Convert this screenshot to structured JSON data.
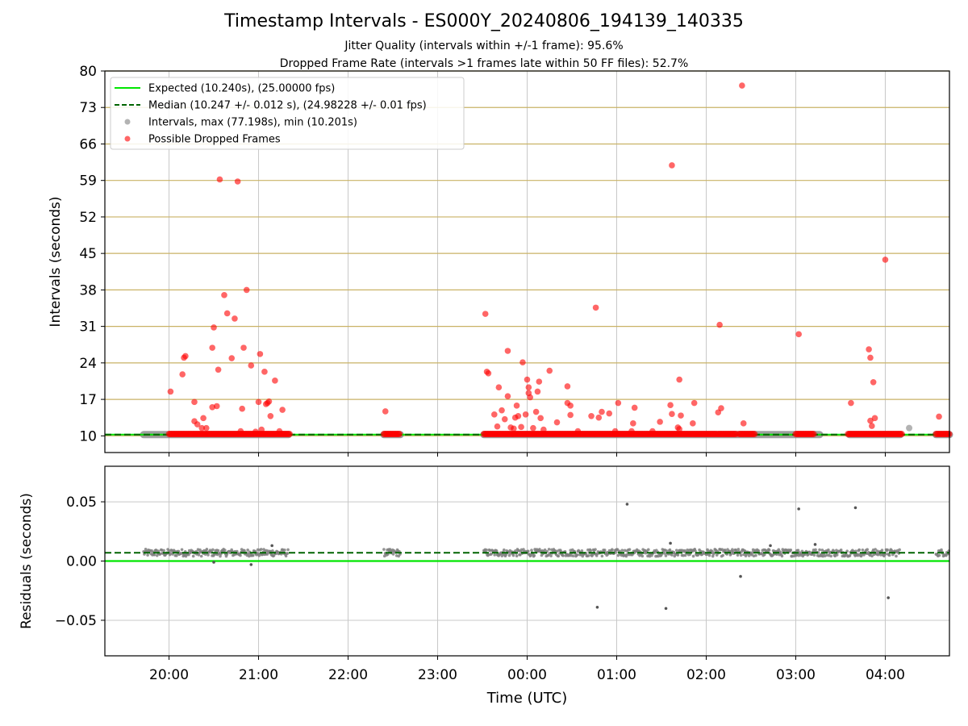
{
  "figure": {
    "title": "Timestamp Intervals - ES000Y_20240806_194139_140335",
    "subtitle_1": "Jitter Quality (intervals within +/-1 frame): 95.6%",
    "subtitle_2": "Dropped Frame Rate (intervals >1 frames late within 50 FF files): 52.7%"
  },
  "colors": {
    "expected": "#00e600",
    "median": "#006400",
    "intervals": "#808080",
    "dropped": "#ff0000",
    "hgrid_top": "#c9b266",
    "grid": "#c8c8c8"
  },
  "chart_data": [
    {
      "type": "scatter",
      "panel": "top",
      "title": "Timestamp Intervals - ES000Y_20240806_194139_140335",
      "xlabel": "",
      "ylabel": "Intervals (seconds)",
      "x_range": [
        "19:17",
        "04:43"
      ],
      "ylim": [
        6.8,
        80
      ],
      "yticks": [
        10,
        17,
        24,
        31,
        38,
        45,
        52,
        59,
        66,
        73,
        80
      ],
      "xticks": [
        "20:00",
        "21:00",
        "22:00",
        "23:00",
        "00:00",
        "01:00",
        "02:00",
        "03:00",
        "04:00"
      ],
      "grid": true,
      "legend_position": "top-left",
      "legend": [
        "Expected (10.240s), (25.00000 fps)",
        "Median (10.247 +/- 0.012 s), (24.98228 +/- 0.01 fps)",
        "Intervals, max (77.198s), min (10.201s)",
        "Possible Dropped Frames"
      ],
      "expected_value": 10.24,
      "median_value": 10.247,
      "interval_segments": [
        {
          "x": [
            "19:43",
            "21:20"
          ],
          "y": 10.24
        },
        {
          "x": [
            "22:24",
            "22:35"
          ],
          "y": 10.24
        },
        {
          "x": [
            "23:31",
            "03:16"
          ],
          "y": 10.24
        },
        {
          "x": [
            "03:36",
            "04:10"
          ],
          "y": 10.24
        },
        {
          "x": [
            "04:34",
            "04:43"
          ],
          "y": 10.24
        }
      ],
      "dropped_baseline_segments": [
        [
          "20:00",
          "21:21"
        ],
        [
          "22:24",
          "22:35"
        ],
        [
          "23:31",
          "02:07"
        ],
        [
          "02:08",
          "02:20"
        ],
        [
          "02:22",
          "02:33"
        ],
        [
          "03:00",
          "03:12"
        ],
        [
          "03:35",
          "04:11"
        ],
        [
          "04:34",
          "04:43"
        ]
      ],
      "interval_points_extra": [
        {
          "x": "04:16",
          "y": 11.5
        }
      ],
      "dropped_points": [
        {
          "x": "20:01",
          "y": 18.5
        },
        {
          "x": "20:09",
          "y": 21.8
        },
        {
          "x": "20:10",
          "y": 25.0
        },
        {
          "x": "20:11",
          "y": 25.3
        },
        {
          "x": "20:17",
          "y": 16.5
        },
        {
          "x": "20:17",
          "y": 12.8
        },
        {
          "x": "20:19",
          "y": 12.2
        },
        {
          "x": "20:22",
          "y": 11.5
        },
        {
          "x": "20:23",
          "y": 13.4
        },
        {
          "x": "20:25",
          "y": 11.5
        },
        {
          "x": "20:29",
          "y": 26.9
        },
        {
          "x": "20:30",
          "y": 30.8
        },
        {
          "x": "20:29",
          "y": 15.5
        },
        {
          "x": "20:32",
          "y": 15.7
        },
        {
          "x": "20:33",
          "y": 22.7
        },
        {
          "x": "20:34",
          "y": 59.2
        },
        {
          "x": "20:37",
          "y": 37.0
        },
        {
          "x": "20:39",
          "y": 33.5
        },
        {
          "x": "20:42",
          "y": 24.9
        },
        {
          "x": "20:44",
          "y": 32.5
        },
        {
          "x": "20:46",
          "y": 58.8
        },
        {
          "x": "20:48",
          "y": 10.9
        },
        {
          "x": "20:49",
          "y": 15.2
        },
        {
          "x": "20:50",
          "y": 26.9
        },
        {
          "x": "20:52",
          "y": 38.0
        },
        {
          "x": "20:55",
          "y": 23.5
        },
        {
          "x": "20:58",
          "y": 10.8
        },
        {
          "x": "21:00",
          "y": 16.5
        },
        {
          "x": "21:01",
          "y": 25.7
        },
        {
          "x": "21:02",
          "y": 11.2
        },
        {
          "x": "21:04",
          "y": 22.3
        },
        {
          "x": "21:05",
          "y": 16.1
        },
        {
          "x": "21:06",
          "y": 16.3
        },
        {
          "x": "21:07",
          "y": 16.6
        },
        {
          "x": "21:08",
          "y": 13.8
        },
        {
          "x": "21:11",
          "y": 20.6
        },
        {
          "x": "21:14",
          "y": 10.9
        },
        {
          "x": "21:16",
          "y": 15.0
        },
        {
          "x": "22:25",
          "y": 14.7
        },
        {
          "x": "23:32",
          "y": 33.4
        },
        {
          "x": "23:33",
          "y": 22.3
        },
        {
          "x": "23:34",
          "y": 22.0
        },
        {
          "x": "23:38",
          "y": 14.1
        },
        {
          "x": "23:40",
          "y": 11.8
        },
        {
          "x": "23:41",
          "y": 19.3
        },
        {
          "x": "23:43",
          "y": 14.9
        },
        {
          "x": "23:45",
          "y": 13.2
        },
        {
          "x": "23:47",
          "y": 17.6
        },
        {
          "x": "23:47",
          "y": 26.3
        },
        {
          "x": "23:49",
          "y": 11.6
        },
        {
          "x": "23:51",
          "y": 11.4
        },
        {
          "x": "23:52",
          "y": 13.5
        },
        {
          "x": "23:53",
          "y": 15.8
        },
        {
          "x": "23:54",
          "y": 13.8
        },
        {
          "x": "23:56",
          "y": 11.7
        },
        {
          "x": "23:57",
          "y": 24.1
        },
        {
          "x": "23:59",
          "y": 14.1
        },
        {
          "x": "00:00",
          "y": 20.8
        },
        {
          "x": "00:01",
          "y": 19.3
        },
        {
          "x": "00:01",
          "y": 18.2
        },
        {
          "x": "00:02",
          "y": 17.4
        },
        {
          "x": "00:04",
          "y": 11.5
        },
        {
          "x": "00:06",
          "y": 14.6
        },
        {
          "x": "00:07",
          "y": 18.5
        },
        {
          "x": "00:08",
          "y": 20.4
        },
        {
          "x": "00:09",
          "y": 13.4
        },
        {
          "x": "00:11",
          "y": 11.2
        },
        {
          "x": "00:15",
          "y": 22.5
        },
        {
          "x": "00:20",
          "y": 12.6
        },
        {
          "x": "00:27",
          "y": 19.5
        },
        {
          "x": "00:27",
          "y": 16.3
        },
        {
          "x": "00:29",
          "y": 15.8
        },
        {
          "x": "00:29",
          "y": 14.0
        },
        {
          "x": "00:34",
          "y": 10.9
        },
        {
          "x": "00:43",
          "y": 13.8
        },
        {
          "x": "00:46",
          "y": 34.6
        },
        {
          "x": "00:48",
          "y": 13.5
        },
        {
          "x": "00:50",
          "y": 14.6
        },
        {
          "x": "00:55",
          "y": 14.3
        },
        {
          "x": "00:59",
          "y": 10.9
        },
        {
          "x": "01:01",
          "y": 16.3
        },
        {
          "x": "01:10",
          "y": 10.9
        },
        {
          "x": "01:11",
          "y": 12.4
        },
        {
          "x": "01:12",
          "y": 15.4
        },
        {
          "x": "01:24",
          "y": 10.9
        },
        {
          "x": "01:29",
          "y": 12.7
        },
        {
          "x": "01:36",
          "y": 15.9
        },
        {
          "x": "01:37",
          "y": 14.2
        },
        {
          "x": "01:37",
          "y": 61.9
        },
        {
          "x": "01:41",
          "y": 11.6
        },
        {
          "x": "01:42",
          "y": 11.3
        },
        {
          "x": "01:42",
          "y": 20.8
        },
        {
          "x": "01:43",
          "y": 13.9
        },
        {
          "x": "01:51",
          "y": 12.4
        },
        {
          "x": "01:52",
          "y": 16.3
        },
        {
          "x": "02:08",
          "y": 14.5
        },
        {
          "x": "02:09",
          "y": 31.3
        },
        {
          "x": "02:10",
          "y": 15.3
        },
        {
          "x": "02:24",
          "y": 77.2
        },
        {
          "x": "02:25",
          "y": 12.4
        },
        {
          "x": "03:02",
          "y": 29.5
        },
        {
          "x": "03:37",
          "y": 16.3
        },
        {
          "x": "03:49",
          "y": 26.6
        },
        {
          "x": "03:50",
          "y": 25.0
        },
        {
          "x": "03:50",
          "y": 12.9
        },
        {
          "x": "03:51",
          "y": 11.9
        },
        {
          "x": "03:52",
          "y": 20.3
        },
        {
          "x": "03:53",
          "y": 13.4
        },
        {
          "x": "04:00",
          "y": 43.8
        },
        {
          "x": "04:36",
          "y": 13.7
        }
      ]
    },
    {
      "type": "scatter",
      "panel": "bottom",
      "xlabel": "Time (UTC)",
      "ylabel": "Residuals (seconds)",
      "x_range": [
        "19:17",
        "04:43"
      ],
      "ylim": [
        -0.08,
        0.08
      ],
      "yticks": [
        -0.05,
        0.0,
        0.05
      ],
      "ytick_labels": [
        "−0.05",
        "0.00",
        "0.05"
      ],
      "xticks": [
        "20:00",
        "21:00",
        "22:00",
        "23:00",
        "00:00",
        "01:00",
        "02:00",
        "03:00",
        "04:00"
      ],
      "grid": true,
      "expected_value": 0.0,
      "median_value": 0.007,
      "residual_band": {
        "center": 0.007,
        "spread": 0.003
      },
      "residual_segments": [
        [
          "19:43",
          "21:20"
        ],
        [
          "22:24",
          "22:35"
        ],
        [
          "23:31",
          "04:10"
        ],
        [
          "04:34",
          "04:43"
        ]
      ],
      "outlier_points": [
        {
          "x": "01:07",
          "y": 0.048
        },
        {
          "x": "03:02",
          "y": 0.044
        },
        {
          "x": "03:40",
          "y": 0.045
        },
        {
          "x": "00:47",
          "y": -0.039
        },
        {
          "x": "01:33",
          "y": -0.04
        },
        {
          "x": "02:23",
          "y": -0.013
        },
        {
          "x": "04:02",
          "y": -0.031
        },
        {
          "x": "20:55",
          "y": -0.003
        },
        {
          "x": "20:30",
          "y": -0.001
        },
        {
          "x": "21:09",
          "y": 0.013
        },
        {
          "x": "01:36",
          "y": 0.015
        },
        {
          "x": "02:43",
          "y": 0.013
        },
        {
          "x": "03:13",
          "y": 0.014
        }
      ]
    }
  ]
}
